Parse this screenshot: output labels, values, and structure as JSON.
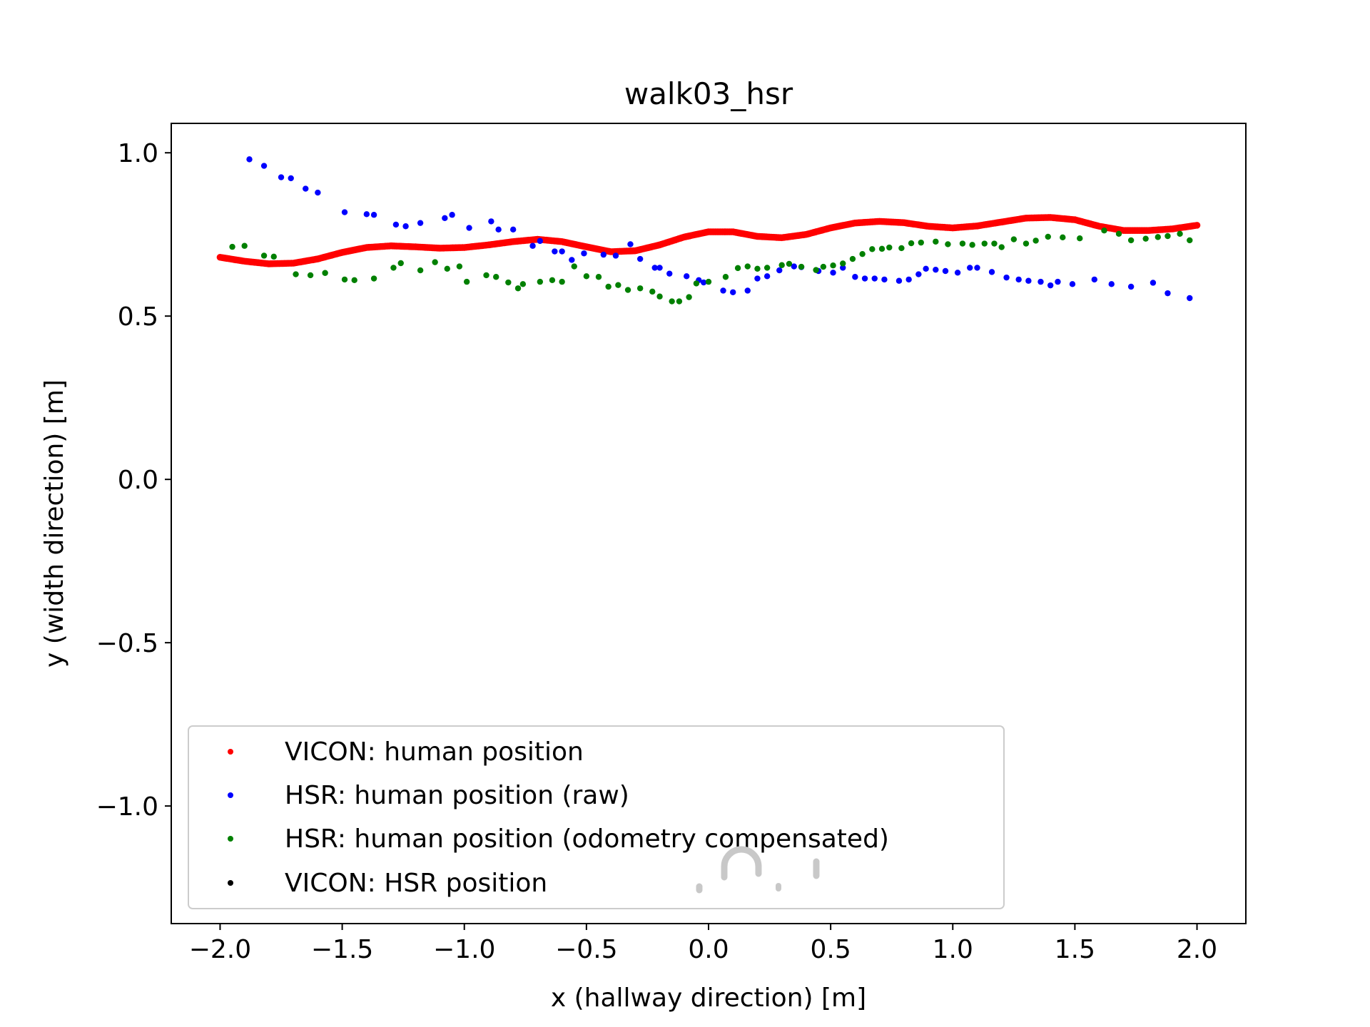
{
  "chart_data": {
    "type": "scatter",
    "title": "walk03_hsr",
    "xlabel": "x (hallway direction) [m]",
    "ylabel": "y (width direction) [m]",
    "xlim": [
      -2.2,
      2.2
    ],
    "ylim": [
      -1.36,
      1.09
    ],
    "xticks": [
      -2.0,
      -1.5,
      -1.0,
      -0.5,
      0.0,
      0.5,
      1.0,
      1.5,
      2.0
    ],
    "xtick_labels": [
      "−2.0",
      "−1.5",
      "−1.0",
      "−0.5",
      "0.0",
      "0.5",
      "1.0",
      "1.5",
      "2.0"
    ],
    "yticks": [
      1.0,
      0.5,
      0.0,
      -0.5,
      -1.0
    ],
    "ytick_labels": [
      "1.0",
      "0.5",
      "0.0",
      "−0.5",
      "−1.0"
    ],
    "grid": false,
    "legend_position": "lower-left",
    "series": [
      {
        "name": "VICON: human position",
        "color": "#ff0000",
        "marker": "dense-dots",
        "x": [
          -2.0,
          -1.9,
          -1.8,
          -1.7,
          -1.6,
          -1.5,
          -1.4,
          -1.3,
          -1.2,
          -1.1,
          -1.0,
          -0.9,
          -0.8,
          -0.7,
          -0.6,
          -0.5,
          -0.4,
          -0.3,
          -0.2,
          -0.1,
          0.0,
          0.1,
          0.2,
          0.3,
          0.4,
          0.5,
          0.6,
          0.7,
          0.8,
          0.9,
          1.0,
          1.1,
          1.2,
          1.3,
          1.4,
          1.5,
          1.6,
          1.7,
          1.8,
          1.9,
          2.0
        ],
        "y": [
          0.68,
          0.668,
          0.66,
          0.662,
          0.675,
          0.695,
          0.71,
          0.715,
          0.712,
          0.708,
          0.71,
          0.718,
          0.728,
          0.735,
          0.728,
          0.712,
          0.697,
          0.7,
          0.718,
          0.742,
          0.758,
          0.758,
          0.744,
          0.74,
          0.75,
          0.77,
          0.785,
          0.79,
          0.786,
          0.775,
          0.77,
          0.776,
          0.788,
          0.8,
          0.802,
          0.795,
          0.775,
          0.762,
          0.762,
          0.767,
          0.778
        ]
      },
      {
        "name": "HSR: human position (raw)",
        "color": "#0000ff",
        "marker": "dot",
        "x": [
          -1.88,
          -1.82,
          -1.75,
          -1.71,
          -1.65,
          -1.6,
          -1.49,
          -1.4,
          -1.37,
          -1.28,
          -1.24,
          -1.18,
          -1.08,
          -1.05,
          -0.98,
          -0.89,
          -0.86,
          -0.8,
          -0.72,
          -0.69,
          -0.63,
          -0.6,
          -0.56,
          -0.51,
          -0.43,
          -0.38,
          -0.32,
          -0.28,
          -0.22,
          -0.2,
          -0.16,
          -0.09,
          -0.04,
          -0.02,
          0.06,
          0.1,
          0.16,
          0.2,
          0.24,
          0.29,
          0.35,
          0.38,
          0.45,
          0.51,
          0.55,
          0.6,
          0.64,
          0.68,
          0.72,
          0.78,
          0.82,
          0.86,
          0.89,
          0.93,
          0.97,
          1.02,
          1.07,
          1.1,
          1.16,
          1.22,
          1.27,
          1.31,
          1.36,
          1.4,
          1.43,
          1.49,
          1.58,
          1.65,
          1.73,
          1.82,
          1.88,
          1.97
        ],
        "y": [
          0.98,
          0.96,
          0.925,
          0.922,
          0.89,
          0.878,
          0.818,
          0.812,
          0.81,
          0.78,
          0.775,
          0.785,
          0.8,
          0.81,
          0.77,
          0.79,
          0.765,
          0.765,
          0.715,
          0.73,
          0.698,
          0.698,
          0.672,
          0.692,
          0.688,
          0.685,
          0.72,
          0.675,
          0.648,
          0.648,
          0.63,
          0.622,
          0.61,
          0.603,
          0.578,
          0.573,
          0.578,
          0.615,
          0.622,
          0.64,
          0.652,
          0.65,
          0.638,
          0.633,
          0.648,
          0.62,
          0.615,
          0.615,
          0.612,
          0.608,
          0.612,
          0.628,
          0.645,
          0.642,
          0.638,
          0.633,
          0.648,
          0.648,
          0.635,
          0.618,
          0.612,
          0.608,
          0.605,
          0.594,
          0.605,
          0.598,
          0.612,
          0.598,
          0.59,
          0.602,
          0.57,
          0.555
        ]
      },
      {
        "name": "HSR: human position (odometry compensated)",
        "color": "#008000",
        "marker": "dot",
        "x": [
          -1.95,
          -1.9,
          -1.82,
          -1.78,
          -1.69,
          -1.63,
          -1.57,
          -1.49,
          -1.45,
          -1.37,
          -1.29,
          -1.26,
          -1.18,
          -1.12,
          -1.07,
          -1.02,
          -0.99,
          -0.91,
          -0.87,
          -0.82,
          -0.78,
          -0.76,
          -0.69,
          -0.64,
          -0.6,
          -0.55,
          -0.5,
          -0.45,
          -0.41,
          -0.37,
          -0.33,
          -0.28,
          -0.23,
          -0.2,
          -0.15,
          -0.12,
          -0.08,
          -0.05,
          0.0,
          0.07,
          0.12,
          0.16,
          0.2,
          0.24,
          0.3,
          0.33,
          0.38,
          0.44,
          0.47,
          0.51,
          0.55,
          0.59,
          0.63,
          0.67,
          0.71,
          0.74,
          0.79,
          0.83,
          0.87,
          0.93,
          0.98,
          1.04,
          1.08,
          1.13,
          1.17,
          1.2,
          1.25,
          1.3,
          1.34,
          1.39,
          1.45,
          1.52,
          1.62,
          1.68,
          1.73,
          1.79,
          1.84,
          1.88,
          1.93,
          1.97
        ],
        "y": [
          0.712,
          0.715,
          0.685,
          0.682,
          0.628,
          0.625,
          0.632,
          0.612,
          0.61,
          0.615,
          0.648,
          0.662,
          0.64,
          0.665,
          0.645,
          0.652,
          0.605,
          0.625,
          0.62,
          0.603,
          0.585,
          0.598,
          0.605,
          0.61,
          0.605,
          0.652,
          0.622,
          0.62,
          0.59,
          0.595,
          0.58,
          0.585,
          0.575,
          0.56,
          0.545,
          0.545,
          0.558,
          0.6,
          0.605,
          0.62,
          0.647,
          0.652,
          0.645,
          0.648,
          0.656,
          0.66,
          0.651,
          0.641,
          0.651,
          0.655,
          0.661,
          0.675,
          0.69,
          0.705,
          0.706,
          0.71,
          0.708,
          0.723,
          0.725,
          0.728,
          0.72,
          0.722,
          0.718,
          0.722,
          0.722,
          0.711,
          0.735,
          0.722,
          0.731,
          0.743,
          0.741,
          0.738,
          0.762,
          0.752,
          0.732,
          0.737,
          0.742,
          0.745,
          0.752,
          0.732
        ]
      },
      {
        "name": "VICON: HSR position",
        "color": "#000000",
        "marker": "dot",
        "x": [],
        "y": []
      }
    ]
  }
}
